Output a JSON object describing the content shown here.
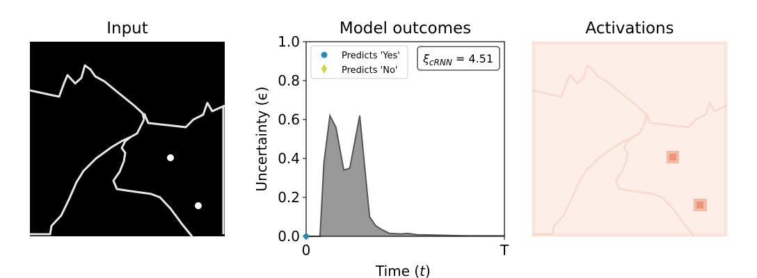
{
  "titles": {
    "input": "Input",
    "model": "Model outcomes",
    "activations": "Activations"
  },
  "chart_data": {
    "type": "area",
    "title": "Model outcomes",
    "xlabel": "Time (t)",
    "ylabel": "Uncertainty (ϵ)",
    "ylim": [
      0,
      1
    ],
    "yticks": [
      "0.0",
      "0.2",
      "0.4",
      "0.6",
      "0.8",
      "1.0"
    ],
    "xticks": [
      "0",
      "T"
    ],
    "x": [
      0,
      0.03,
      0.07,
      0.09,
      0.12,
      0.15,
      0.19,
      0.22,
      0.27,
      0.32,
      0.35,
      0.38,
      0.42,
      0.48,
      0.51,
      0.56,
      0.62,
      0.7,
      0.8,
      1.0
    ],
    "values": [
      0,
      0,
      0,
      0.38,
      0.62,
      0.56,
      0.34,
      0.35,
      0.62,
      0.1,
      0.055,
      0.035,
      0.015,
      0.012,
      0.015,
      0.008,
      0.007,
      0.005,
      0.003,
      0.002
    ],
    "fill_color": "#999999",
    "line_color": "#555555",
    "legend": {
      "position": "top-left",
      "items": [
        {
          "label": "Predicts 'Yes'",
          "marker": "circle",
          "color": "#2a8bb0"
        },
        {
          "label": "Predicts 'No'",
          "marker": "diamond",
          "color": "#c8d644"
        }
      ]
    },
    "annotation": {
      "symbol": "ξ",
      "subscript": "cRNN",
      "text": " = 4.51"
    },
    "markers": [
      {
        "x": 0,
        "y": 0,
        "color": "#2a8bb0",
        "shape": "circle"
      }
    ]
  },
  "colors": {
    "input_bg": "#000000",
    "outline": "#e6e6e6",
    "activation_bg": "#fdeee7",
    "activation_hot": "#f3a48a"
  }
}
